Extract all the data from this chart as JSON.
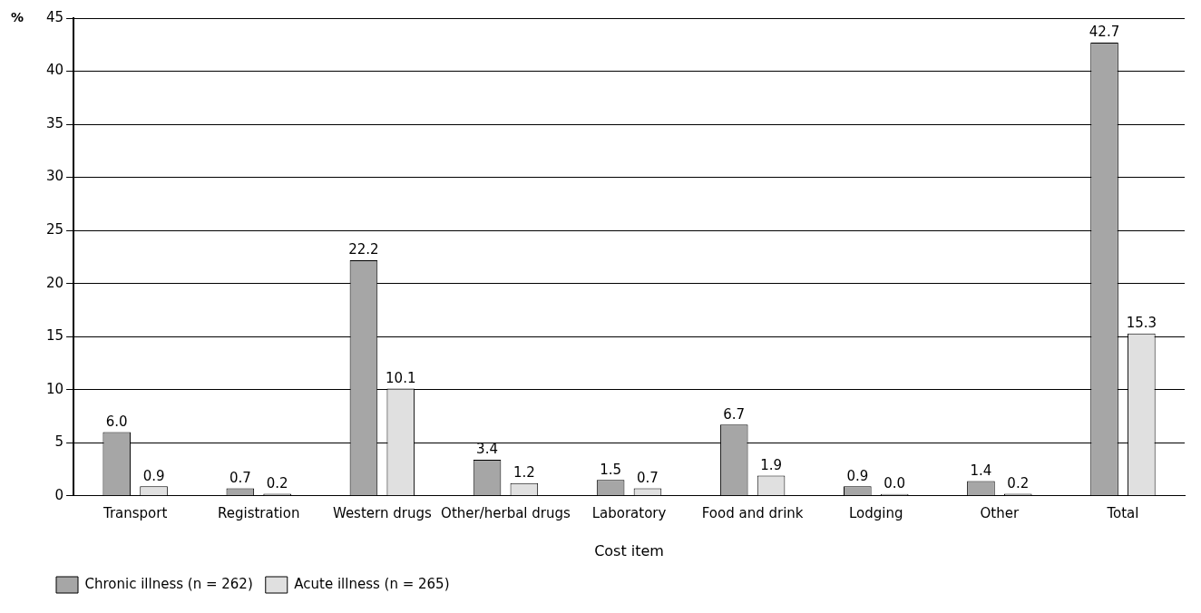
{
  "chart_data": {
    "type": "bar",
    "xlabel": "Cost item",
    "ylabel": "%",
    "categories": [
      "Transport",
      "Registration",
      "Western drugs",
      "Other/herbal drugs",
      "Laboratory",
      "Food and drink",
      "Lodging",
      "Other",
      "Total"
    ],
    "series": [
      {
        "name": "Chronic illness (n = 262)",
        "color": "#a6a6a6",
        "values": [
          6.0,
          0.7,
          22.2,
          3.4,
          1.5,
          6.7,
          0.9,
          1.4,
          42.7
        ],
        "value_labels": [
          "6.0",
          "0.7",
          "22.2",
          "3.4",
          "1.5",
          "6.7",
          "0.9",
          "1.4",
          "42.7"
        ]
      },
      {
        "name": "Acute illness (n = 265)",
        "color": "#e0e0e0",
        "values": [
          0.9,
          0.2,
          10.1,
          1.2,
          0.7,
          1.9,
          0.0,
          0.2,
          15.3
        ],
        "value_labels": [
          "0.9",
          "0.2",
          "10.1",
          "1.2",
          "0.7",
          "1.9",
          "0.0",
          "0.2",
          "15.3"
        ]
      }
    ],
    "ylim": [
      0,
      45
    ],
    "yticks": [
      0,
      5,
      10,
      15,
      20,
      25,
      30,
      35,
      40,
      45
    ],
    "grid": "y",
    "legend": "bottom left"
  }
}
